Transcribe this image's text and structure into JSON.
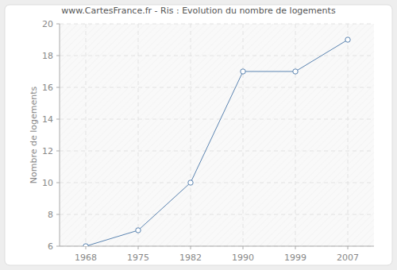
{
  "chart_data": {
    "type": "line",
    "title": "www.CartesFrance.fr - Ris : Evolution du nombre de logements",
    "ylabel": "Nombre de logements",
    "categories": [
      "1968",
      "1975",
      "1982",
      "1990",
      "1999",
      "2007"
    ],
    "values": [
      6,
      7,
      10,
      17,
      17,
      19
    ],
    "color": "#5b84b1",
    "marker": "circle",
    "ylim": [
      6,
      20
    ],
    "yticks": [
      6,
      8,
      10,
      12,
      14,
      16,
      18,
      20
    ],
    "grid": true
  }
}
